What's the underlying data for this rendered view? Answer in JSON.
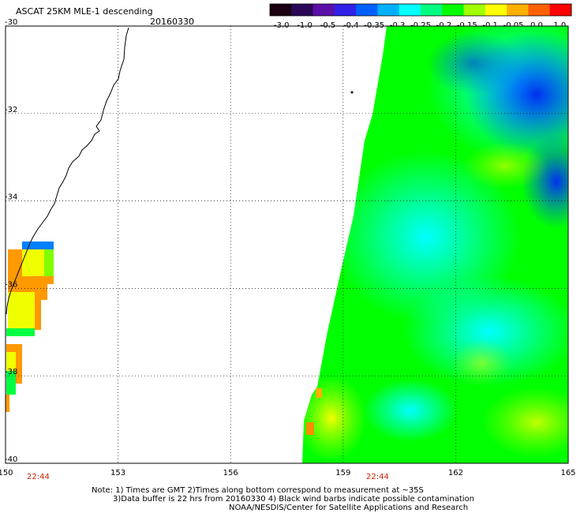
{
  "header": {
    "title": "ASCAT 25KM MLE-1 descending",
    "date": "20160330"
  },
  "chart_data": {
    "type": "heatmap",
    "variable": "MLE-1",
    "colorbar": {
      "ticks": [
        "-3.0",
        "-1.0",
        "-0.5",
        "-0.4",
        "-0.35",
        "-0.3",
        "-0.25",
        "-0.2",
        "-0.15",
        "-0.1",
        "-0.05",
        "0.0",
        "1.0"
      ],
      "colors": [
        "#1a0010",
        "#2a0858",
        "#5a10a8",
        "#3020e8",
        "#0060ff",
        "#00b0ff",
        "#00ffff",
        "#00ff80",
        "#00ff00",
        "#a0ff00",
        "#ffff00",
        "#ffb000",
        "#ff6000",
        "#ff0000"
      ]
    },
    "lon_ticks": [
      "150",
      "153",
      "156",
      "159",
      "162",
      "165"
    ],
    "lat_ticks": [
      "-30",
      "-32",
      "-34",
      "-36",
      "-38",
      "-40"
    ],
    "lon_range": [
      150,
      165
    ],
    "lat_range": [
      -40,
      -30
    ],
    "grid": "dotted",
    "time_labels": [
      "22:44",
      "22:44"
    ]
  },
  "notes": [
    "Note: 1) Times are GMT 2)Times along bottom correspond to measurement at ~35S",
    "3)Data buffer is 22 hrs from 20160330 4) Black wind barbs indicate possible contamination",
    "NOAA/NESDIS/Center for Satellite Applications and Research"
  ]
}
